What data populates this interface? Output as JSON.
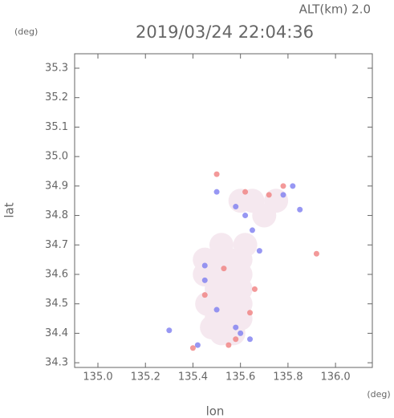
{
  "chart_data": {
    "type": "scatter",
    "title": "2019/03/24 22:04:36",
    "annotation": "ALT(km) 2.0",
    "y_unit": "(deg)",
    "x_unit": "(deg)",
    "x_label": "lon",
    "y_label": "lat",
    "xlim": [
      134.902,
      136.155
    ],
    "ylim": [
      34.284,
      35.349
    ],
    "xticks": [
      {
        "value": 135.0,
        "label": "135.0"
      },
      135.2,
      135.4,
      135.6,
      135.8,
      {
        "value": 136.0,
        "label": "136.0"
      }
    ],
    "yticks": [
      34.3,
      34.4,
      34.5,
      34.6,
      34.7,
      34.8,
      34.9,
      {
        "value": 35.0,
        "label": "35.0"
      },
      35.1,
      35.2,
      35.3
    ],
    "series": [
      {
        "color": "#f5e8ef",
        "x": [
          135.45,
          135.5,
          135.55,
          135.6,
          135.45,
          135.5,
          135.55,
          135.6,
          135.5,
          135.55,
          135.6,
          135.5,
          135.55,
          135.6,
          135.5,
          135.55,
          135.6,
          135.52,
          135.57,
          135.6,
          135.65,
          135.7,
          135.75,
          135.48,
          135.46,
          135.62,
          135.52
        ],
        "values": [
          34.65,
          34.65,
          34.65,
          34.65,
          34.6,
          34.6,
          34.6,
          34.6,
          34.55,
          34.55,
          34.55,
          34.5,
          34.5,
          34.5,
          34.45,
          34.45,
          34.45,
          34.4,
          34.4,
          34.85,
          34.85,
          34.8,
          34.85,
          34.42,
          34.5,
          34.7,
          34.7
        ]
      },
      {
        "color": "#7d7df0",
        "x": [
          135.58,
          135.62,
          135.78,
          135.82,
          135.65,
          135.45,
          135.5,
          135.58,
          135.6,
          135.64,
          135.45,
          135.3,
          135.42,
          135.68,
          135.5,
          135.85
        ],
        "values": [
          34.83,
          34.8,
          34.87,
          34.9,
          34.75,
          34.58,
          34.48,
          34.42,
          34.4,
          34.38,
          34.63,
          34.41,
          34.36,
          34.68,
          34.88,
          34.82
        ]
      },
      {
        "color": "#f08080",
        "x": [
          135.5,
          135.62,
          135.72,
          135.66,
          135.64,
          135.58,
          135.45,
          135.53,
          135.55,
          135.92,
          135.4,
          135.78
        ],
        "values": [
          34.94,
          34.88,
          34.87,
          34.55,
          34.47,
          34.38,
          34.53,
          34.62,
          34.36,
          34.67,
          34.35,
          34.9
        ]
      }
    ]
  }
}
